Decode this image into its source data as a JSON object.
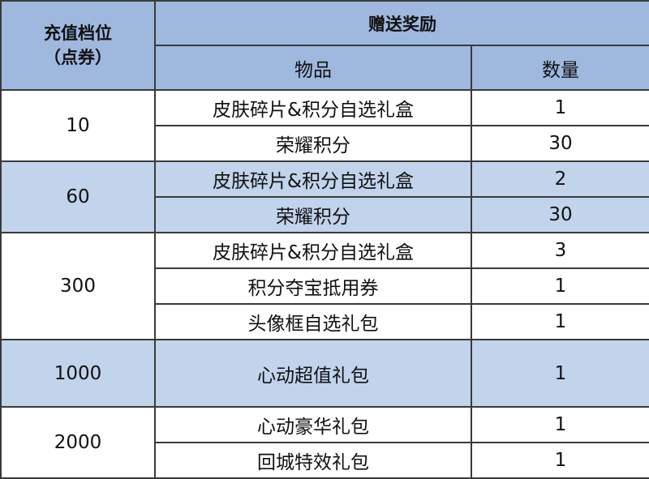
{
  "header": {
    "tier": [
      "充值档位",
      "（点券）"
    ],
    "reward": "赠送奖励",
    "item": "物品",
    "qty": "数量"
  },
  "groups": [
    {
      "tier": 10,
      "items": [
        {
          "name": "皮肤碎片&积分自选礼盒",
          "qty": 1
        },
        {
          "name": "荣耀积分",
          "qty": 30
        }
      ]
    },
    {
      "tier": 60,
      "items": [
        {
          "name": "皮肤碎片&积分自选礼盒",
          "qty": 2
        },
        {
          "name": "荣耀积分",
          "qty": 30
        }
      ]
    },
    {
      "tier": 300,
      "items": [
        {
          "name": "皮肤碎片&积分自选礼盒",
          "qty": 3
        },
        {
          "name": "积分夺宝抵用券",
          "qty": 1
        },
        {
          "name": "头像框自选礼包",
          "qty": 1
        }
      ]
    },
    {
      "tier": 1000,
      "items": [
        {
          "name": "心动超值礼包",
          "qty": 1
        }
      ]
    },
    {
      "tier": 2000,
      "items": [
        {
          "name": "心动豪华礼包",
          "qty": 1
        },
        {
          "name": "回城特效礼包",
          "qty": 1
        }
      ]
    }
  ]
}
